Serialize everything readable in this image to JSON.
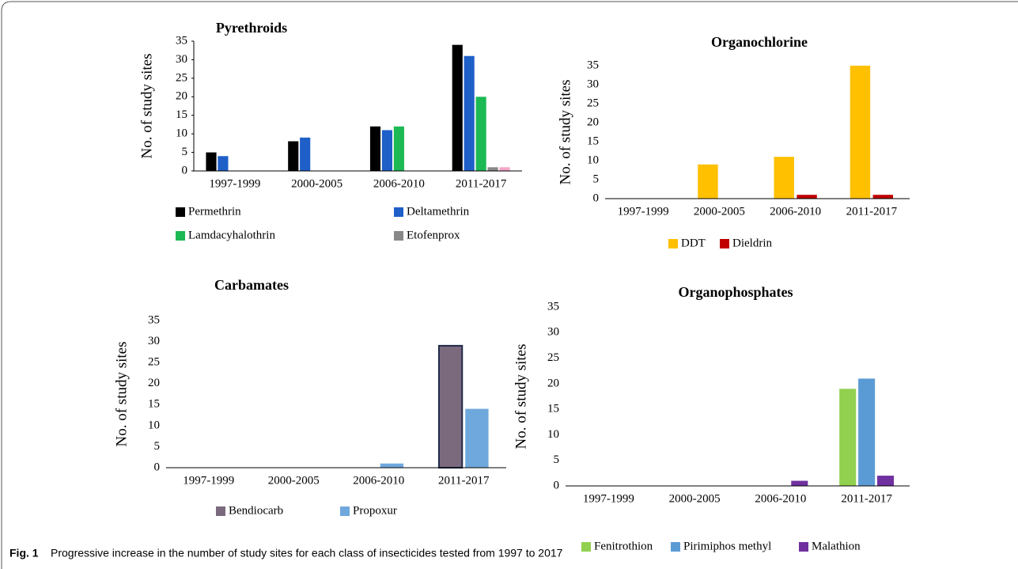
{
  "chart_data": [
    {
      "type": "bar",
      "title": "Pyrethroids",
      "y_label": "No. of study sites",
      "categories": [
        "1997-1999",
        "2000-2005",
        "2006-2010",
        "2011-2017"
      ],
      "series": [
        {
          "name": "Permethrin",
          "color": "#000000",
          "values": [
            5,
            8,
            12,
            34
          ]
        },
        {
          "name": "Deltamethrin",
          "color": "#1f5fc8",
          "values": [
            4,
            9,
            11,
            31
          ]
        },
        {
          "name": "Lamdacyhalothrin",
          "color": "#1db954",
          "values": [
            0,
            0,
            12,
            20
          ]
        },
        {
          "name": "Etofenprox",
          "color": "#888888",
          "values": [
            0,
            0,
            0,
            1
          ]
        },
        {
          "name": null,
          "color": "#f4a6c8",
          "values": [
            0,
            0,
            0,
            1
          ]
        }
      ],
      "ylim": [
        0,
        35
      ],
      "yticks": [
        0,
        5,
        10,
        15,
        20,
        25,
        30,
        35
      ]
    },
    {
      "type": "bar",
      "title": "Organochlorine",
      "y_label": "No. of study sites",
      "categories": [
        "1997-1999",
        "2000-2005",
        "2006-2010",
        "2011-2017"
      ],
      "series": [
        {
          "name": "DDT",
          "color": "#ffc000",
          "values": [
            0,
            9,
            11,
            35
          ]
        },
        {
          "name": "Dieldrin",
          "color": "#c00000",
          "values": [
            0,
            0,
            1,
            1
          ]
        }
      ],
      "ylim": [
        0,
        35
      ],
      "yticks": [
        0,
        5,
        10,
        15,
        20,
        25,
        30,
        35
      ]
    },
    {
      "type": "bar",
      "title": "Carbamates",
      "y_label": "No. of  study sites",
      "categories": [
        "1997-1999",
        "2000-2005",
        "2006-2010",
        "2011-2017"
      ],
      "series": [
        {
          "name": "Bendiocarb",
          "color": "#7b6a7e",
          "values": [
            0,
            0,
            0,
            29
          ]
        },
        {
          "name": "Propoxur",
          "color": "#6fa8dc",
          "values": [
            0,
            0,
            1,
            14
          ]
        }
      ],
      "ylim": [
        0,
        35
      ],
      "yticks": [
        0,
        5,
        10,
        15,
        20,
        25,
        30,
        35
      ]
    },
    {
      "type": "bar",
      "title": "Organophosphates",
      "y_label": "No. of  study sites",
      "categories": [
        "1997-1999",
        "2000-2005",
        "2006-2010",
        "2011-2017"
      ],
      "series": [
        {
          "name": "Fenitrothion",
          "color": "#92d050",
          "values": [
            0,
            0,
            0,
            19
          ]
        },
        {
          "name": "Pirimiphos methyl",
          "color": "#5b9bd5",
          "values": [
            0,
            0,
            0,
            21
          ]
        },
        {
          "name": "Malathion",
          "color": "#7030a0",
          "values": [
            0,
            0,
            1,
            2
          ]
        }
      ],
      "ylim": [
        0,
        35
      ],
      "yticks": [
        0,
        5,
        10,
        15,
        20,
        25,
        30,
        35
      ]
    }
  ],
  "caption": {
    "label": "Fig. 1",
    "text": "Progressive increase in the number of study sites for each class of insecticides tested from 1997 to 2017"
  }
}
